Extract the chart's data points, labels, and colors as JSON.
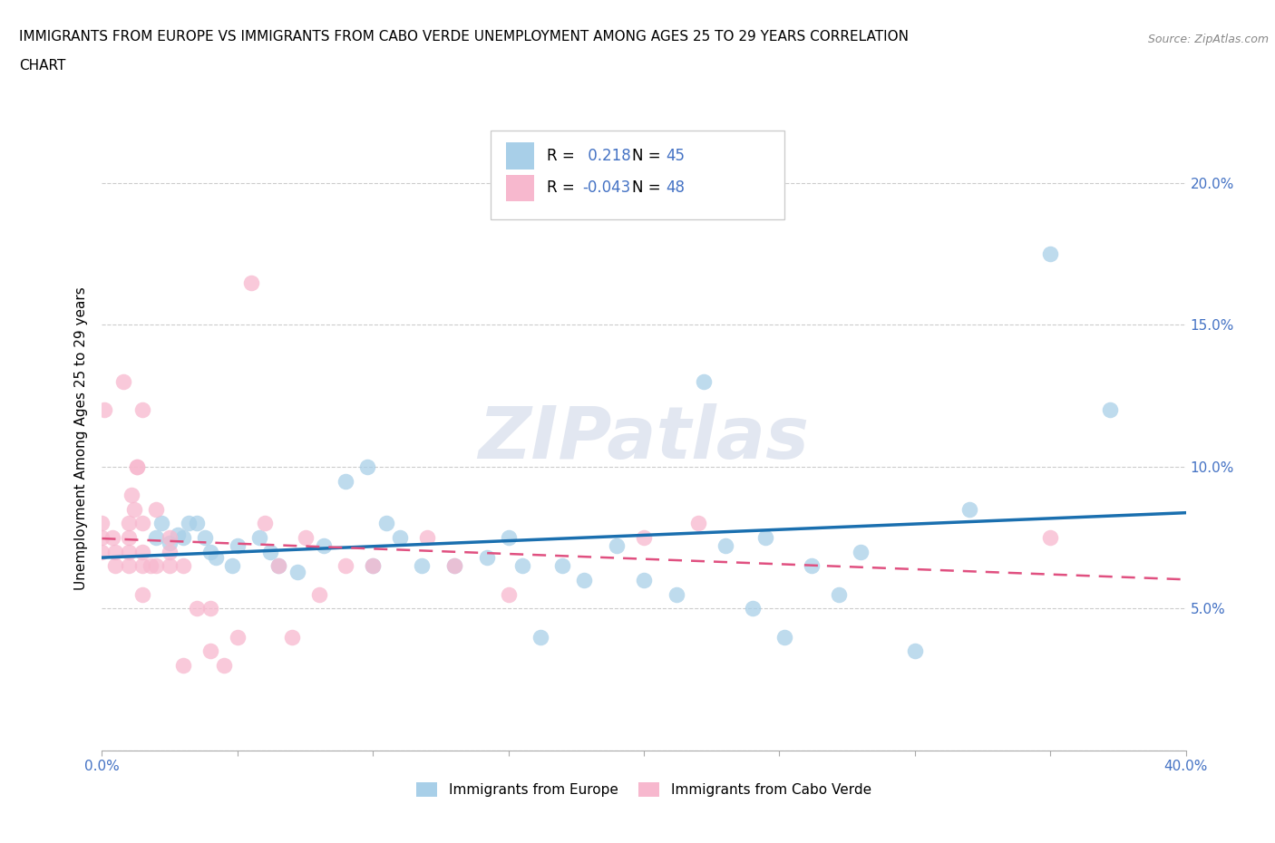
{
  "title_line1": "IMMIGRANTS FROM EUROPE VS IMMIGRANTS FROM CABO VERDE UNEMPLOYMENT AMONG AGES 25 TO 29 YEARS CORRELATION",
  "title_line2": "CHART",
  "source": "Source: ZipAtlas.com",
  "ylabel": "Unemployment Among Ages 25 to 29 years",
  "xlim": [
    0.0,
    0.4
  ],
  "ylim": [
    0.0,
    0.22
  ],
  "color_europe": "#a8cfe8",
  "color_cabo": "#f7b8ce",
  "color_line_europe": "#1a6faf",
  "color_line_cabo": "#e05080",
  "R_europe": 0.218,
  "N_europe": 45,
  "R_cabo": -0.043,
  "N_cabo": 48,
  "watermark": "ZIPatlas",
  "europe_x": [
    0.02,
    0.022,
    0.025,
    0.028,
    0.03,
    0.032,
    0.035,
    0.038,
    0.04,
    0.042,
    0.048,
    0.05,
    0.058,
    0.062,
    0.065,
    0.072,
    0.082,
    0.09,
    0.098,
    0.1,
    0.105,
    0.11,
    0.118,
    0.13,
    0.142,
    0.15,
    0.155,
    0.162,
    0.17,
    0.178,
    0.19,
    0.2,
    0.212,
    0.222,
    0.23,
    0.24,
    0.245,
    0.252,
    0.262,
    0.272,
    0.28,
    0.3,
    0.32,
    0.35,
    0.372
  ],
  "europe_y": [
    0.075,
    0.08,
    0.073,
    0.076,
    0.075,
    0.08,
    0.08,
    0.075,
    0.07,
    0.068,
    0.065,
    0.072,
    0.075,
    0.07,
    0.065,
    0.063,
    0.072,
    0.095,
    0.1,
    0.065,
    0.08,
    0.075,
    0.065,
    0.065,
    0.068,
    0.075,
    0.065,
    0.04,
    0.065,
    0.06,
    0.072,
    0.06,
    0.055,
    0.13,
    0.072,
    0.05,
    0.075,
    0.04,
    0.065,
    0.055,
    0.07,
    0.035,
    0.085,
    0.175,
    0.12
  ],
  "cabo_x": [
    0.0,
    0.0,
    0.0,
    0.001,
    0.004,
    0.005,
    0.005,
    0.008,
    0.01,
    0.01,
    0.01,
    0.01,
    0.011,
    0.012,
    0.013,
    0.013,
    0.015,
    0.015,
    0.015,
    0.015,
    0.015,
    0.018,
    0.02,
    0.02,
    0.025,
    0.025,
    0.025,
    0.03,
    0.03,
    0.035,
    0.04,
    0.04,
    0.045,
    0.05,
    0.055,
    0.06,
    0.065,
    0.07,
    0.075,
    0.08,
    0.09,
    0.1,
    0.12,
    0.13,
    0.15,
    0.2,
    0.22,
    0.35
  ],
  "cabo_y": [
    0.07,
    0.075,
    0.08,
    0.12,
    0.075,
    0.07,
    0.065,
    0.13,
    0.065,
    0.07,
    0.075,
    0.08,
    0.09,
    0.085,
    0.1,
    0.1,
    0.055,
    0.065,
    0.07,
    0.08,
    0.12,
    0.065,
    0.065,
    0.085,
    0.065,
    0.07,
    0.075,
    0.03,
    0.065,
    0.05,
    0.035,
    0.05,
    0.03,
    0.04,
    0.165,
    0.08,
    0.065,
    0.04,
    0.075,
    0.055,
    0.065,
    0.065,
    0.075,
    0.065,
    0.055,
    0.075,
    0.08,
    0.075
  ]
}
